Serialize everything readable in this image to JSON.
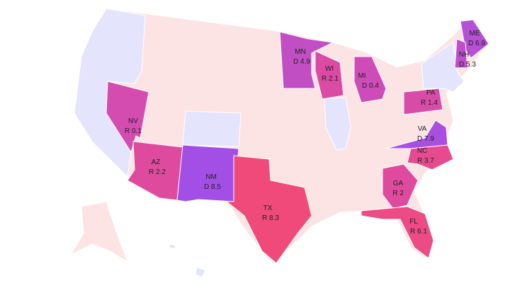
{
  "states": [
    {
      "abbr": "NV",
      "margin": "R 0.1",
      "color": "#d44cb0"
    },
    {
      "abbr": "AZ",
      "margin": "R 2.2",
      "color": "#de4b9e"
    },
    {
      "abbr": "NM",
      "margin": "D 8.5",
      "color": "#a34fe6"
    },
    {
      "abbr": "TX",
      "margin": "R 8.3",
      "color": "#f04a7a"
    },
    {
      "abbr": "MN",
      "margin": "D 4.9",
      "color": "#c24ec4"
    },
    {
      "abbr": "WI",
      "margin": "R 2.1",
      "color": "#db4ba4"
    },
    {
      "abbr": "MI",
      "margin": "D 0.4",
      "color": "#cd4cb8"
    },
    {
      "abbr": "PA",
      "margin": "R 1.4",
      "color": "#d84ca8"
    },
    {
      "abbr": "VA",
      "margin": "D 7.9",
      "color": "#a94fe0"
    },
    {
      "abbr": "NC",
      "margin": "R 3.7",
      "color": "#e64a8f"
    },
    {
      "abbr": "GA",
      "margin": "R 2",
      "color": "#de4b9e"
    },
    {
      "abbr": "FL",
      "margin": "R 6.1",
      "color": "#ec4b85"
    },
    {
      "abbr": "ME",
      "margin": "D 6.9",
      "color": "#b54fd4"
    },
    {
      "abbr": "NH",
      "margin": "D 5.3",
      "color": "#bd4fcb"
    }
  ]
}
